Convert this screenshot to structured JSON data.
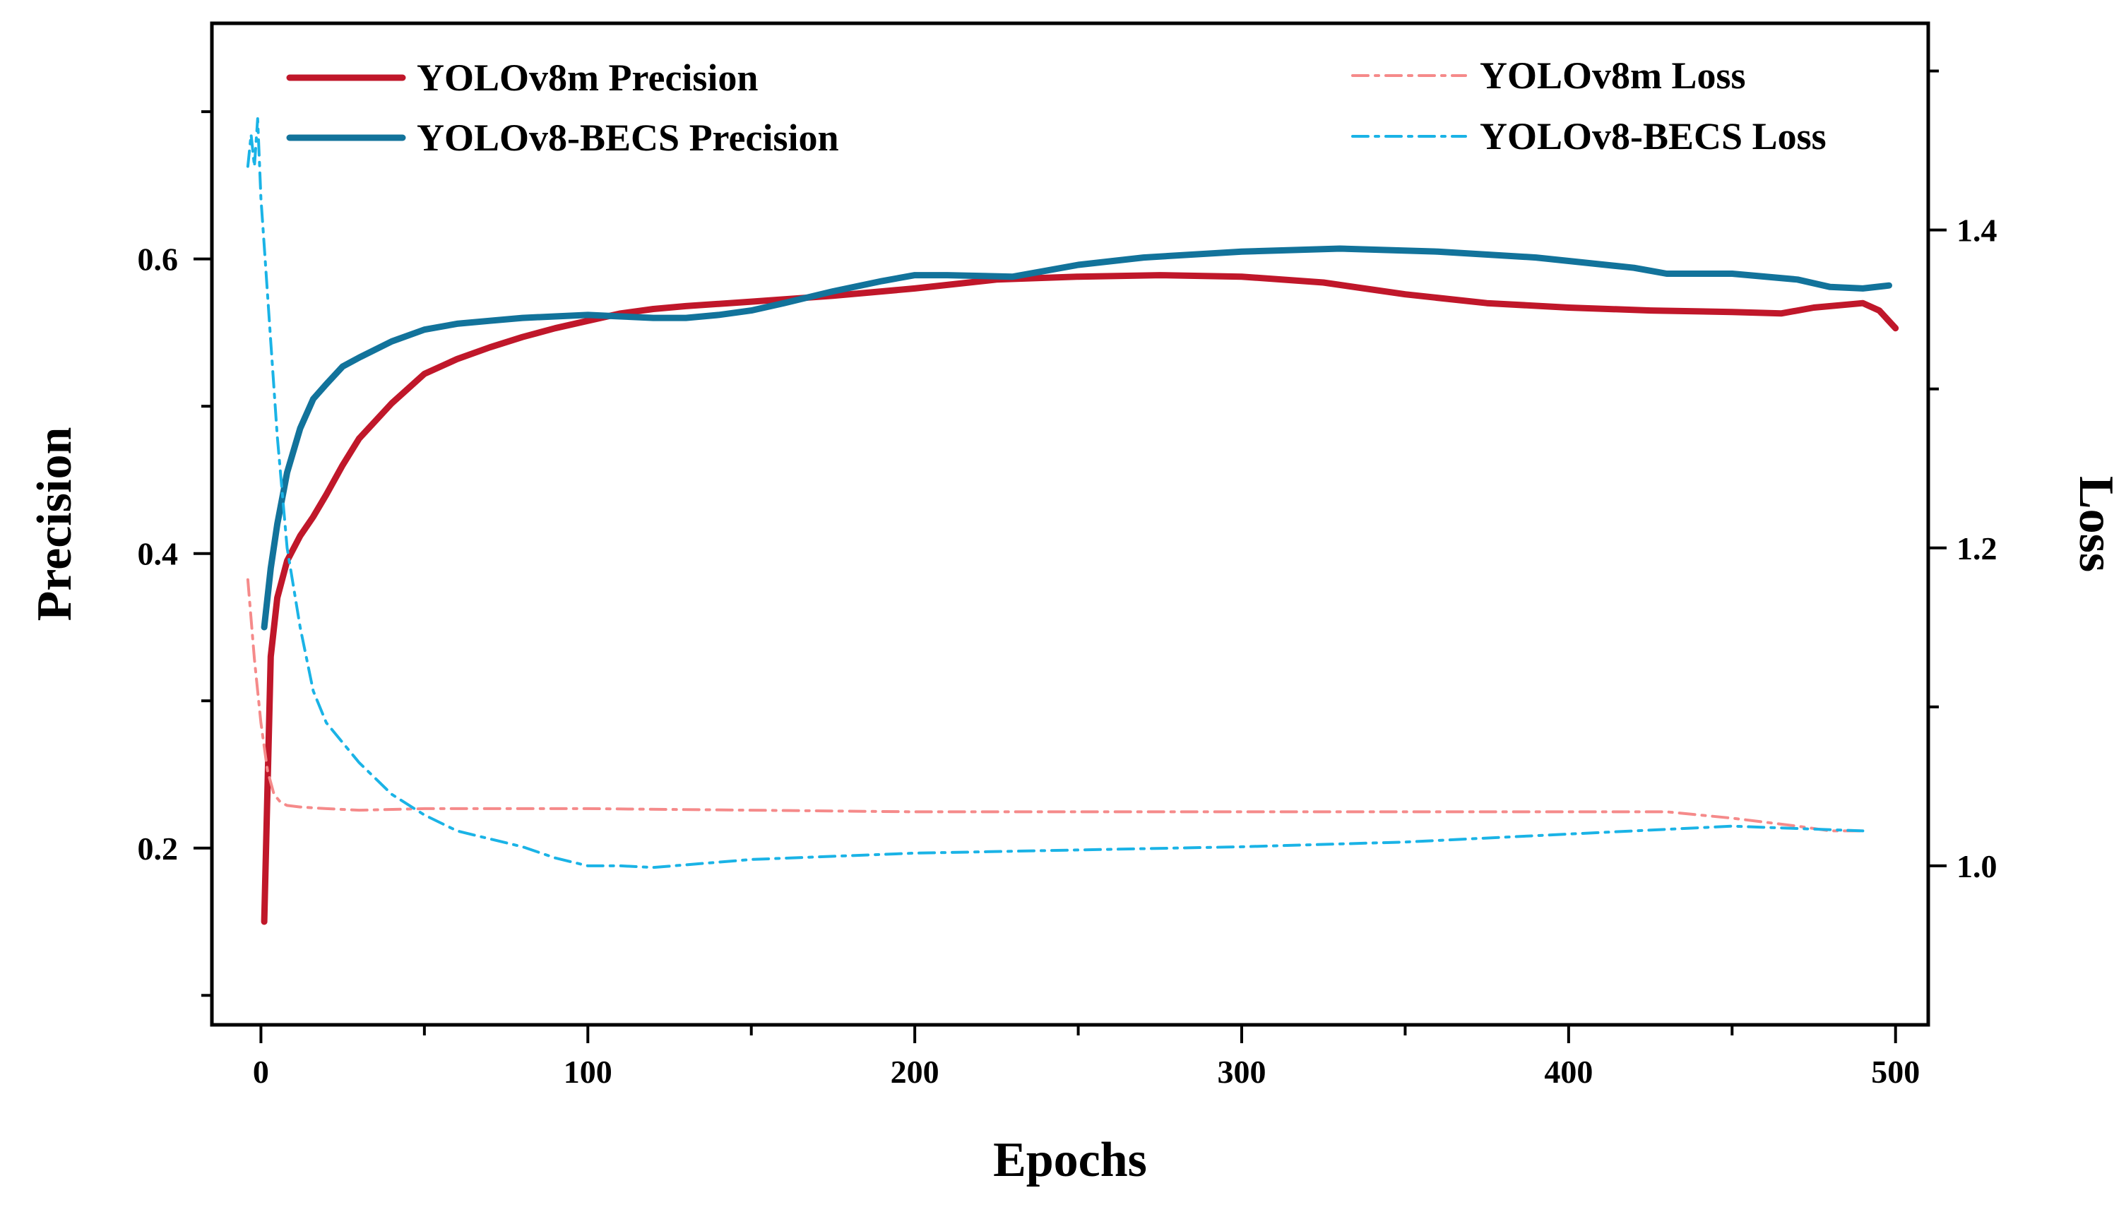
{
  "chart_data": {
    "type": "line",
    "title": "",
    "xlabel": "Epochs",
    "ylabel_left": "Precision",
    "ylabel_right": "Loss",
    "xlim": [
      -15,
      510
    ],
    "ylim_left": [
      0.08,
      0.76
    ],
    "ylim_right": [
      0.9,
      1.53
    ],
    "x_ticks": [
      0,
      100,
      200,
      300,
      400,
      500
    ],
    "y_left_ticks": [
      0.2,
      0.4,
      0.6
    ],
    "y_right_ticks": [
      1.0,
      1.2,
      1.4
    ],
    "grid": false,
    "legend_left": "top-left",
    "legend_right": "top-right",
    "series": [
      {
        "name": "YOLOv8m Precision",
        "axis": "left",
        "style": "solid",
        "color": "#c0172a",
        "x": [
          1,
          3,
          5,
          8,
          12,
          16,
          20,
          25,
          30,
          40,
          50,
          60,
          70,
          80,
          90,
          100,
          110,
          120,
          130,
          150,
          175,
          200,
          225,
          250,
          275,
          300,
          325,
          350,
          375,
          400,
          425,
          450,
          465,
          475,
          485,
          490,
          495,
          500
        ],
        "values": [
          0.15,
          0.33,
          0.37,
          0.395,
          0.412,
          0.425,
          0.44,
          0.46,
          0.478,
          0.502,
          0.522,
          0.532,
          0.54,
          0.547,
          0.553,
          0.558,
          0.563,
          0.566,
          0.568,
          0.571,
          0.575,
          0.58,
          0.586,
          0.588,
          0.589,
          0.588,
          0.584,
          0.576,
          0.57,
          0.567,
          0.565,
          0.564,
          0.563,
          0.567,
          0.569,
          0.57,
          0.565,
          0.553
        ]
      },
      {
        "name": "YOLOv8-BECS Precision",
        "axis": "left",
        "style": "solid",
        "color": "#12739b",
        "x": [
          1,
          3,
          5,
          8,
          12,
          16,
          20,
          25,
          30,
          40,
          50,
          60,
          70,
          80,
          90,
          100,
          110,
          120,
          130,
          140,
          150,
          160,
          175,
          190,
          200,
          210,
          230,
          250,
          270,
          300,
          330,
          360,
          390,
          420,
          430,
          450,
          470,
          480,
          490,
          498
        ],
        "values": [
          0.35,
          0.39,
          0.42,
          0.455,
          0.485,
          0.505,
          0.515,
          0.527,
          0.533,
          0.544,
          0.552,
          0.556,
          0.558,
          0.56,
          0.561,
          0.562,
          0.561,
          0.56,
          0.56,
          0.562,
          0.565,
          0.57,
          0.578,
          0.585,
          0.589,
          0.589,
          0.588,
          0.596,
          0.601,
          0.605,
          0.607,
          0.605,
          0.601,
          0.594,
          0.59,
          0.59,
          0.586,
          0.581,
          0.58,
          0.582
        ]
      },
      {
        "name": "YOLOv8m Loss",
        "axis": "right",
        "style": "dashdot",
        "color": "#f58a8a",
        "x": [
          -4,
          -2,
          0,
          2,
          4,
          6,
          8,
          12,
          20,
          30,
          50,
          100,
          150,
          200,
          250,
          300,
          350,
          400,
          430,
          450,
          470,
          480,
          490
        ],
        "values": [
          1.18,
          1.13,
          1.09,
          1.06,
          1.045,
          1.04,
          1.038,
          1.037,
          1.036,
          1.035,
          1.036,
          1.036,
          1.035,
          1.034,
          1.034,
          1.034,
          1.034,
          1.034,
          1.034,
          1.03,
          1.025,
          1.022,
          1.022
        ]
      },
      {
        "name": "YOLOv8-BECS Loss",
        "axis": "right",
        "style": "dashdot",
        "color": "#1ab3e6",
        "x": [
          -4,
          -3,
          -2,
          -1,
          0,
          1,
          3,
          5,
          8,
          12,
          16,
          20,
          30,
          40,
          50,
          60,
          70,
          80,
          90,
          100,
          110,
          120,
          150,
          200,
          250,
          300,
          350,
          400,
          450,
          490
        ],
        "values": [
          1.44,
          1.46,
          1.44,
          1.47,
          1.42,
          1.39,
          1.33,
          1.27,
          1.2,
          1.15,
          1.11,
          1.09,
          1.065,
          1.045,
          1.032,
          1.022,
          1.017,
          1.012,
          1.005,
          1.0,
          1.0,
          0.999,
          1.004,
          1.008,
          1.01,
          1.012,
          1.015,
          1.02,
          1.025,
          1.022
        ]
      }
    ]
  }
}
